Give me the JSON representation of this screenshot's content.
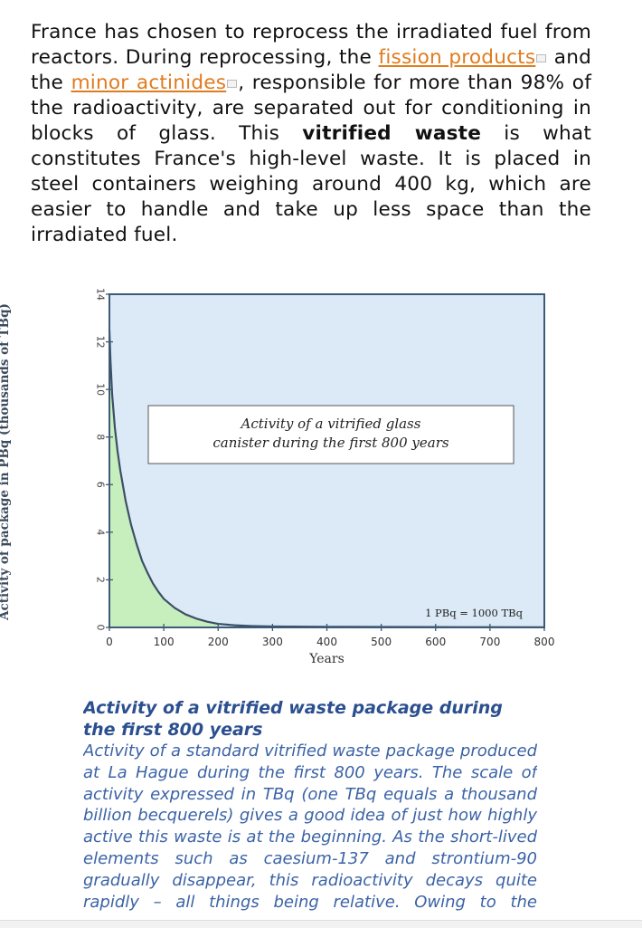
{
  "intro": {
    "text1": "France has chosen to reprocess the irradiated fuel from reactors. During reprocessing, the ",
    "link1": "fission products",
    "text2": " and the ",
    "link2": "minor actinides",
    "text3": ", responsible for more than 98% of the radioactivity, are separated out for conditioning in blocks of glass. This ",
    "bold": "vitrified waste",
    "text4": " is what constitutes France's high-level waste. It is placed in steel containers weighing around 400 kg, which are easier to handle and take up less space than the irradiated fuel."
  },
  "chart_data": {
    "type": "area",
    "title": "Activity of a vitrified glass canister during the first 800 years",
    "xlabel": "Years",
    "ylabel": "Activity of package in PBq (thousands of TBq)",
    "annotation": "1 PBq = 1000 TBq",
    "xlim": [
      0,
      800
    ],
    "ylim": [
      0,
      14
    ],
    "xticks": [
      0,
      100,
      200,
      300,
      400,
      500,
      600,
      700,
      800
    ],
    "yticks": [
      0,
      2,
      4,
      6,
      8,
      10,
      12,
      14
    ],
    "fill_until_x": 210,
    "series": [
      {
        "x": [
          0,
          2,
          5,
          10,
          15,
          20,
          30,
          40,
          50,
          60,
          70,
          80,
          90,
          100,
          120,
          140,
          160,
          180,
          200,
          230,
          260,
          300,
          400,
          500,
          600,
          700,
          800
        ],
        "y": [
          12.5,
          11.2,
          9.8,
          8.4,
          7.4,
          6.6,
          5.3,
          4.3,
          3.5,
          2.8,
          2.3,
          1.85,
          1.5,
          1.2,
          0.82,
          0.55,
          0.37,
          0.24,
          0.15,
          0.09,
          0.06,
          0.04,
          0.025,
          0.02,
          0.015,
          0.01,
          0.008
        ]
      }
    ],
    "colors": {
      "plot_bg": "#dbeaf6",
      "fill": "#c6efbd",
      "line": "#3d4f66",
      "frame": "#3d5a78"
    },
    "grid": false
  },
  "caption": {
    "title": "Activity of a vitrified waste package during the first 800 years",
    "body": "Activity of a standard vitrified waste package produced at La Hague during the first 800 years. The scale of activity expressed in TBq (one TBq equals a thousand billion becquerels) gives a good idea of just how highly active this waste is at the beginning. As the short-lived elements such as caesium-137 and strontium-90 gradually disappear, this radioactivity decays quite rapidly – all things being relative. Owing to the adopted scale, it is not"
  }
}
